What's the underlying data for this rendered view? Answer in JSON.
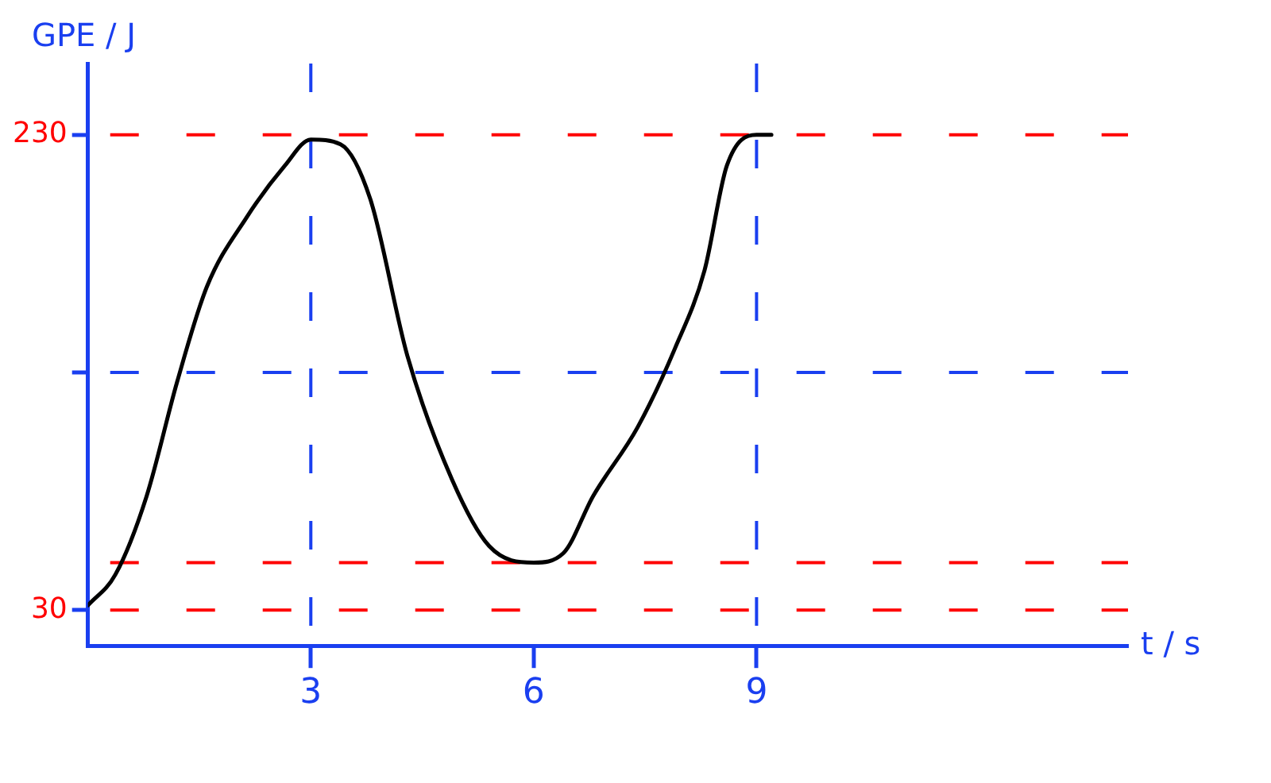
{
  "chart_data": {
    "type": "line",
    "xlabel": "t / s",
    "ylabel": "GPE / J",
    "x": [
      0,
      0.37,
      0.79,
      1.2,
      1.6,
      2.13,
      2.65,
      3,
      3.4,
      3.8,
      4.3,
      4.9,
      5.4,
      6,
      6.4,
      6.8,
      7.4,
      7.9,
      8.3,
      8.6,
      9,
      9.2
    ],
    "series": [
      {
        "color": "#000000",
        "values": [
          32,
          45,
          78,
          126,
          166,
          195,
          217,
          228,
          226,
          203,
          137,
          85,
          57,
          50,
          54,
          78,
          107,
          140,
          173,
          217,
          230,
          230
        ]
      }
    ],
    "xlim": [
      0,
      14
    ],
    "xticks": [
      3,
      6,
      9
    ],
    "ylim": [
      15,
      260
    ],
    "yticks": [
      30,
      {
        "value": 130,
        "label": null
      },
      230
    ],
    "ref_lines": [
      {
        "axis": "y",
        "value": 230,
        "color": "#ff0000",
        "line_style": "dashed"
      },
      {
        "axis": "y",
        "value": 130,
        "color": "#1a3ff0",
        "line_style": "dashed"
      },
      {
        "axis": "y",
        "value": 50,
        "color": "#ff0000",
        "line_style": "dashed"
      },
      {
        "axis": "y",
        "value": 30,
        "color": "#ff0000",
        "line_style": "dashed"
      },
      {
        "axis": "x",
        "value": 3,
        "color": "#1a3ff0",
        "line_style": "dashed"
      },
      {
        "axis": "x",
        "value": 9,
        "color": "#1a3ff0",
        "line_style": "dashed"
      }
    ],
    "grid": false,
    "legend": false,
    "marker": "none",
    "line_style": "solid"
  }
}
